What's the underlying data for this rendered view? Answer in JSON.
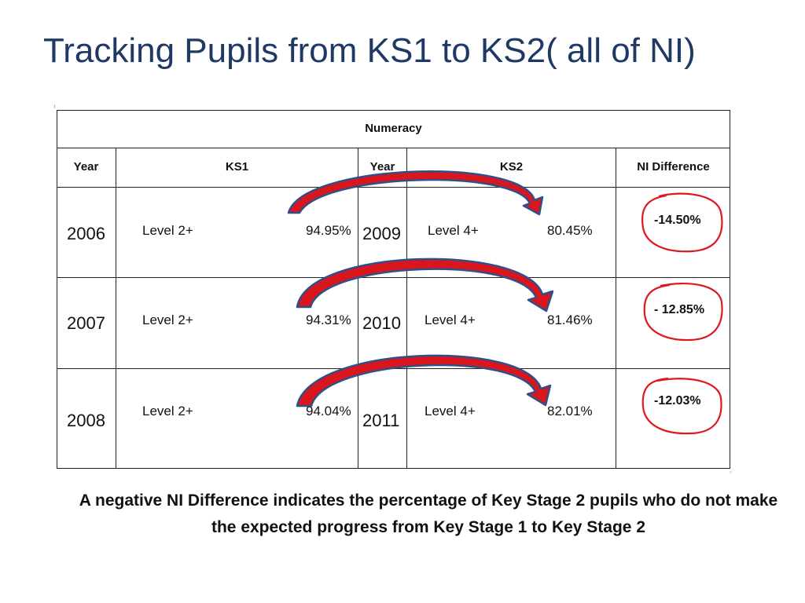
{
  "slide": {
    "title": "Tracking Pupils from KS1 to KS2( all of NI)",
    "note_line1": "A negative NI Difference indicates the percentage of Key Stage 2 pupils who do not make",
    "note_line2": "the expected progress from Key Stage 1 to Key Stage 2"
  },
  "table": {
    "caption": "Numeracy",
    "headers": {
      "year1": "Year",
      "ks1": "KS1",
      "year2": "Year",
      "ks2": "KS2",
      "diff": "NI Difference"
    },
    "rows": [
      {
        "year1": "2006",
        "ks1_level": "Level 2+",
        "ks1_pct": "94.95%",
        "year2": "2009",
        "ks2_level": "Level 4+",
        "ks2_pct": "80.45%",
        "diff": "-14.50%"
      },
      {
        "year1": "2007",
        "ks1_level": "Level 2+",
        "ks1_pct": "94.31%",
        "year2": "2010",
        "ks2_level": "Level 4+",
        "ks2_pct": "81.46%",
        "diff": "- 12.85%"
      },
      {
        "year1": "2008",
        "ks1_level": "Level 2+",
        "ks1_pct": "94.04%",
        "year2": "2011",
        "ks2_level": "Level 4+",
        "ks2_pct": "82.01%",
        "diff": "-12.03%"
      }
    ]
  },
  "colors": {
    "title": "#1f3864",
    "arrow_fill": "#d9161c",
    "arrow_edge": "#2f4f8a",
    "circle": "#e0181e"
  }
}
